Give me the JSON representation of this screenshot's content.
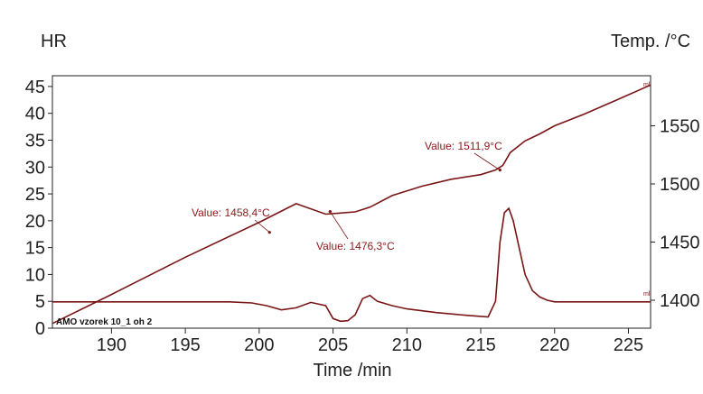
{
  "chart_data": {
    "type": "line",
    "title": "",
    "xlabel": "Time /min",
    "ylabel_left": "HR",
    "ylabel_right": "Temp. /°C",
    "xlim": [
      186,
      226.5
    ],
    "ylim_left": [
      0,
      47
    ],
    "ylim_right": [
      1376,
      1593
    ],
    "x_ticks": [
      190,
      195,
      200,
      205,
      210,
      215,
      220,
      225
    ],
    "y_left_ticks": [
      0,
      5,
      10,
      15,
      20,
      25,
      30,
      35,
      40,
      45
    ],
    "y_right_ticks": [
      1400,
      1450,
      1500,
      1550
    ],
    "grid": false,
    "sample_label": "AMO vzorek 10_1 oh 2",
    "series": [
      {
        "axis": "right",
        "color": "#7a1515",
        "x": [
          186,
          190,
          195,
          200,
          202.5,
          204.5,
          205.5,
          206.5,
          207.5,
          209,
          211,
          213,
          215,
          216,
          216.5,
          217,
          218,
          219,
          220,
          222,
          224,
          226.5
        ],
        "y": [
          1380,
          1405,
          1437,
          1467,
          1483,
          1474,
          1475,
          1476,
          1480,
          1490,
          1498,
          1504,
          1508,
          1512,
          1516,
          1527,
          1537,
          1543,
          1550,
          1560,
          1571,
          1585
        ]
      },
      {
        "axis": "left",
        "color": "#7a1515",
        "x": [
          186,
          190,
          195,
          198,
          199.5,
          200.5,
          201.5,
          202.5,
          203.5,
          204.5,
          205,
          205.5,
          206,
          206.5,
          207,
          207.5,
          208,
          209,
          210,
          212,
          214,
          215.5,
          216,
          216.3,
          216.6,
          216.9,
          217.2,
          217.6,
          218,
          218.5,
          219,
          219.5,
          220,
          222,
          224,
          226.5
        ],
        "y": [
          4.9,
          4.9,
          4.9,
          4.9,
          4.7,
          4.2,
          3.4,
          3.8,
          4.8,
          4.2,
          1.8,
          1.3,
          1.4,
          2.5,
          5.5,
          6.1,
          5.0,
          4.2,
          3.6,
          2.9,
          2.4,
          2.1,
          5.0,
          16.0,
          21.5,
          22.3,
          20.0,
          15.0,
          10.0,
          7.0,
          5.8,
          5.2,
          4.9,
          4.9,
          4.9,
          4.9
        ]
      }
    ],
    "annotations": [
      {
        "label": "Value: 1458,4°C",
        "x": 200.7,
        "axis": "right",
        "y": 1458.4
      },
      {
        "label": "Value: 1476,3°C",
        "x": 204.8,
        "axis": "right",
        "y": 1476.3
      },
      {
        "label": "Value: 1511,9°C",
        "x": 216.3,
        "axis": "right",
        "y": 1511.9
      }
    ]
  }
}
